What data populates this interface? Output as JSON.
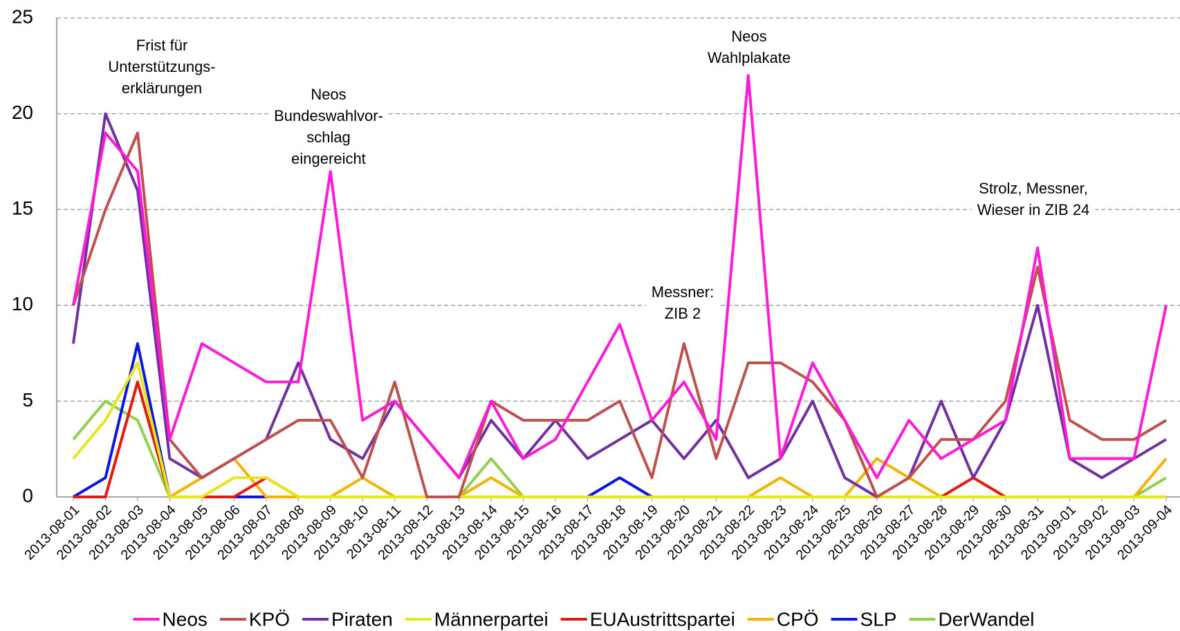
{
  "chart_data": {
    "type": "line",
    "categories": [
      "2013-08-01",
      "2013-08-02",
      "2013-08-03",
      "2013-08-04",
      "2013-08-05",
      "2013-08-06",
      "2013-08-07",
      "2013-08-08",
      "2013-08-09",
      "2013-08-10",
      "2013-08-11",
      "2013-08-12",
      "2013-08-13",
      "2013-08-14",
      "2013-08-15",
      "2013-08-16",
      "2013-08-17",
      "2013-08-18",
      "2013-08-19",
      "2013-08-20",
      "2013-08-21",
      "2013-08-22",
      "2013-08-23",
      "2013-08-24",
      "2013-08-25",
      "2013-08-26",
      "2013-08-27",
      "2013-08-28",
      "2013-08-29",
      "2013-08-30",
      "2013-08-31",
      "2013-09-01",
      "2013-09-02",
      "2013-09-03",
      "2013-09-04"
    ],
    "series": [
      {
        "name": "Neos",
        "color": "#ff19d9",
        "values": [
          10,
          19,
          17,
          3,
          8,
          7,
          6,
          6,
          17,
          4,
          5,
          3,
          1,
          5,
          2,
          3,
          6,
          9,
          4,
          6,
          3,
          22,
          2,
          7,
          4,
          1,
          4,
          2,
          3,
          4,
          13,
          2,
          2,
          2,
          10
        ]
      },
      {
        "name": "KPÖ",
        "color": "#c0504d",
        "values": [
          10,
          15,
          19,
          3,
          1,
          2,
          3,
          4,
          4,
          1,
          6,
          0,
          0,
          5,
          4,
          4,
          4,
          5,
          1,
          8,
          2,
          7,
          7,
          6,
          4,
          0,
          1,
          3,
          3,
          5,
          12,
          4,
          3,
          3,
          4
        ]
      },
      {
        "name": "Piraten",
        "color": "#7030a0",
        "values": [
          8,
          20,
          16,
          2,
          1,
          2,
          3,
          7,
          3,
          2,
          5,
          3,
          1,
          4,
          2,
          4,
          2,
          3,
          4,
          2,
          4,
          1,
          2,
          5,
          1,
          0,
          1,
          5,
          1,
          4,
          10,
          2,
          1,
          2,
          3
        ]
      },
      {
        "name": "Männerpartei",
        "color": "#e6e619",
        "values": [
          2,
          4,
          7,
          0,
          0,
          1,
          1,
          0,
          0,
          0,
          0,
          0,
          0,
          0,
          0,
          0,
          0,
          0,
          0,
          0,
          0,
          0,
          0,
          0,
          0,
          0,
          0,
          0,
          0,
          0,
          0,
          0,
          0,
          0,
          0
        ]
      },
      {
        "name": "EUAustrittspartei",
        "color": "#e31a0f",
        "values": [
          0,
          0,
          6,
          0,
          0,
          0,
          1,
          0,
          0,
          0,
          0,
          0,
          0,
          0,
          0,
          0,
          0,
          0,
          0,
          0,
          0,
          0,
          0,
          0,
          0,
          0,
          0,
          0,
          1,
          0,
          0,
          0,
          0,
          0,
          0
        ]
      },
      {
        "name": "CPÖ",
        "color": "#f2b400",
        "values": [
          0,
          0,
          6,
          0,
          1,
          2,
          0,
          0,
          0,
          1,
          0,
          0,
          0,
          1,
          0,
          0,
          0,
          0,
          0,
          0,
          0,
          0,
          1,
          0,
          0,
          2,
          1,
          0,
          0,
          0,
          0,
          0,
          0,
          0,
          2
        ]
      },
      {
        "name": "SLP",
        "color": "#0a14e6",
        "values": [
          0,
          1,
          8,
          0,
          0,
          0,
          0,
          0,
          0,
          0,
          0,
          0,
          0,
          0,
          0,
          0,
          0,
          1,
          0,
          0,
          0,
          0,
          0,
          0,
          0,
          0,
          0,
          0,
          0,
          0,
          0,
          0,
          0,
          0,
          0
        ]
      },
      {
        "name": "DerWandel",
        "color": "#8fd14f",
        "values": [
          3,
          5,
          4,
          0,
          0,
          0,
          0,
          0,
          0,
          0,
          0,
          0,
          0,
          2,
          0,
          0,
          0,
          0,
          0,
          0,
          0,
          0,
          0,
          0,
          0,
          0,
          0,
          0,
          0,
          0,
          0,
          0,
          0,
          0,
          1
        ]
      }
    ],
    "annotations": [
      [
        "Frist für",
        "Unterstützungs-",
        "erklärungen"
      ],
      [
        "Neos",
        "Bundeswahlvor-",
        "schlag",
        "eingereicht"
      ],
      [
        "Neos",
        "Wahlplakate"
      ],
      [
        "Messner:",
        "ZIB 2"
      ],
      [
        "Strolz, Messner,",
        "Wieser in ZIB 24"
      ]
    ],
    "ylim": [
      0,
      25
    ],
    "yticks": [
      0,
      5,
      10,
      15,
      20,
      25
    ],
    "grid": true,
    "legend": "bottom"
  }
}
